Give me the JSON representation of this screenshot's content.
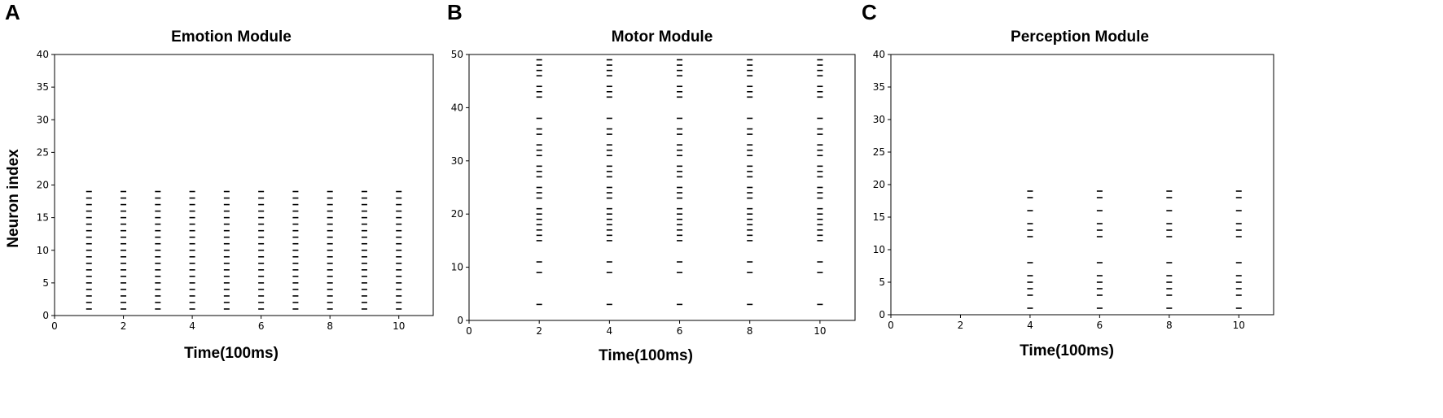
{
  "figure": {
    "panels": [
      {
        "letter": "A"
      },
      {
        "letter": "B"
      },
      {
        "letter": "C"
      }
    ]
  },
  "chart_data": [
    {
      "type": "scatter",
      "marker": "horizontal-tick",
      "title": "Emotion Module",
      "xlabel": "Time(100ms)",
      "ylabel": "Neuron index",
      "xlim": [
        0,
        11
      ],
      "ylim": [
        0,
        40
      ],
      "xticks": [
        0,
        2,
        4,
        6,
        8,
        10
      ],
      "yticks": [
        0,
        5,
        10,
        15,
        20,
        25,
        30,
        35,
        40
      ],
      "spike_times": [
        1,
        2,
        3,
        4,
        5,
        6,
        7,
        8,
        9,
        10
      ],
      "neuron_indices": [
        1,
        2,
        3,
        4,
        5,
        6,
        7,
        8,
        9,
        10,
        11,
        12,
        13,
        14,
        15,
        16,
        17,
        18,
        19
      ],
      "grid": false,
      "color": "#000000"
    },
    {
      "type": "scatter",
      "marker": "horizontal-tick",
      "title": "Motor Module",
      "xlabel": "Time(100ms)",
      "ylabel": "",
      "xlim": [
        0,
        11
      ],
      "ylim": [
        0,
        50
      ],
      "xticks": [
        0,
        2,
        4,
        6,
        8,
        10
      ],
      "yticks": [
        0,
        10,
        20,
        30,
        40,
        50
      ],
      "spike_times": [
        2,
        4,
        6,
        8,
        10
      ],
      "neuron_indices": [
        3,
        9,
        11,
        15,
        16,
        17,
        18,
        19,
        20,
        21,
        23,
        24,
        25,
        27,
        28,
        29,
        31,
        32,
        33,
        35,
        36,
        38,
        42,
        43,
        44,
        46,
        47,
        48,
        49
      ],
      "grid": false,
      "color": "#000000"
    },
    {
      "type": "scatter",
      "marker": "horizontal-tick",
      "title": "Perception Module",
      "xlabel": "Time(100ms)",
      "ylabel": "",
      "xlim": [
        0,
        11
      ],
      "ylim": [
        0,
        40
      ],
      "xticks": [
        0,
        2,
        4,
        6,
        8,
        10
      ],
      "yticks": [
        0,
        5,
        10,
        15,
        20,
        25,
        30,
        35,
        40
      ],
      "spike_times": [
        4,
        6,
        8,
        10
      ],
      "neuron_indices": [
        1,
        3,
        4,
        5,
        6,
        8,
        12,
        13,
        14,
        16,
        18,
        19
      ],
      "grid": false,
      "color": "#000000"
    }
  ]
}
